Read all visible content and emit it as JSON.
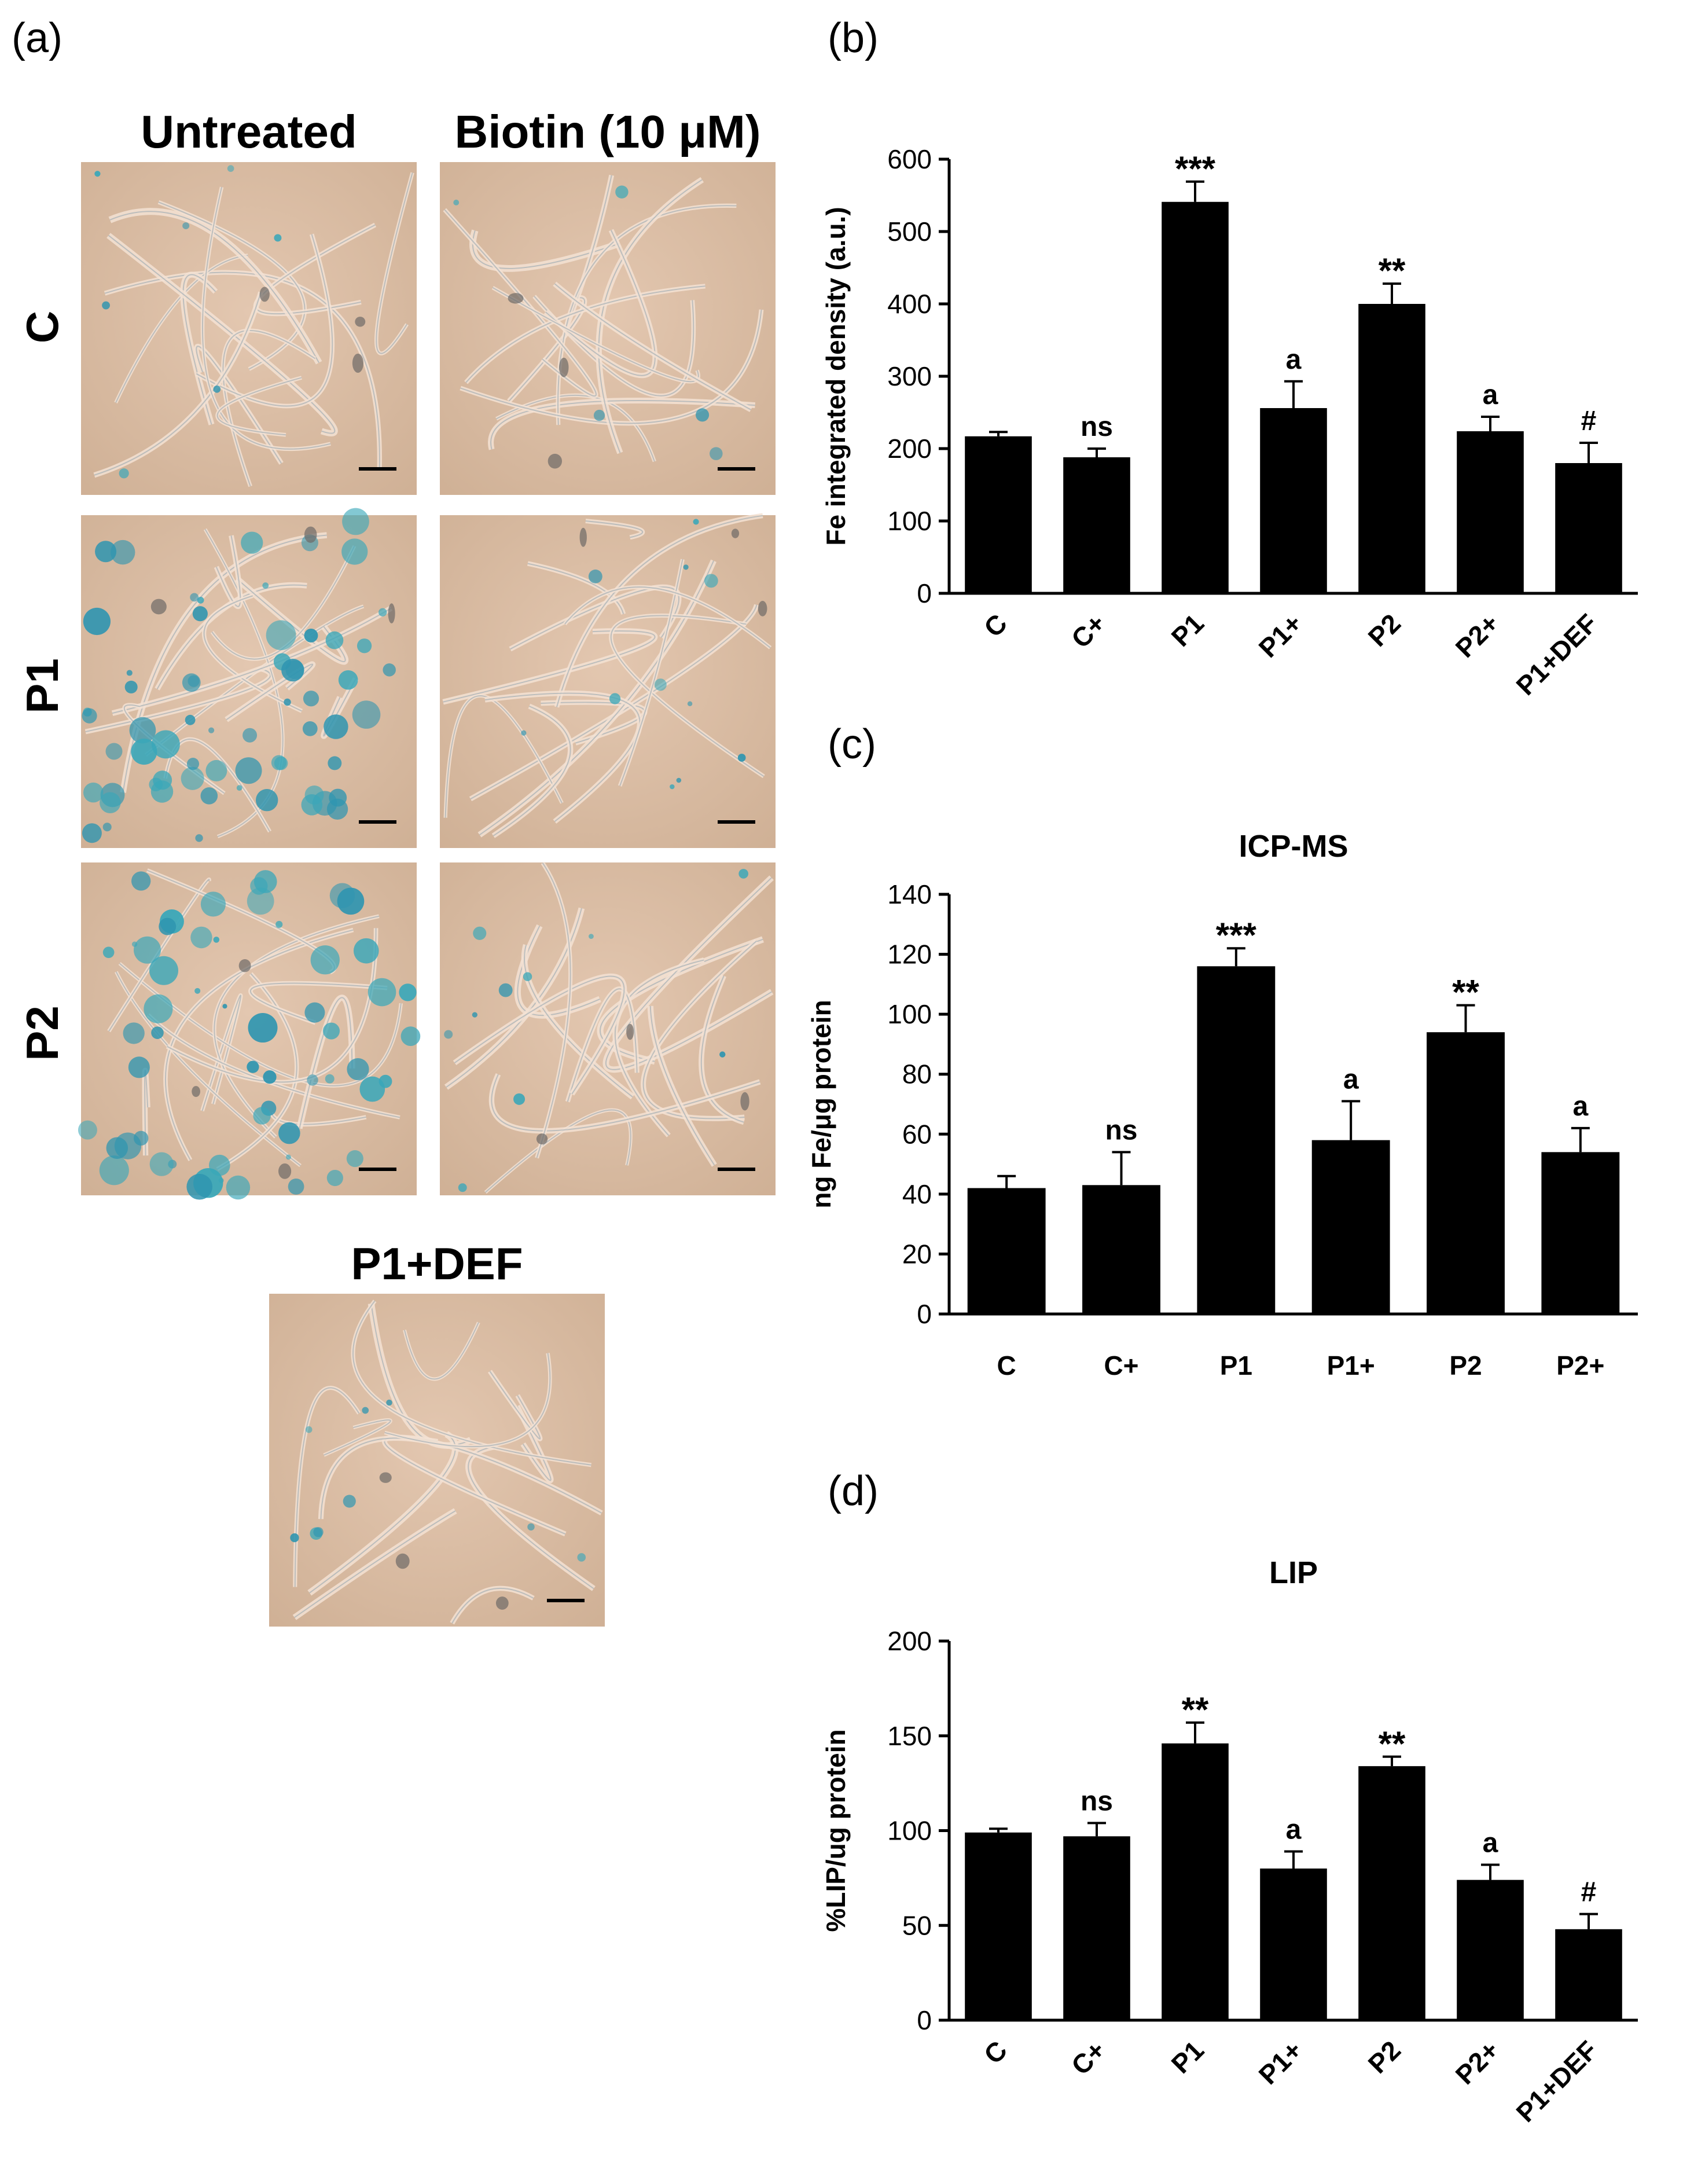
{
  "panel_a": {
    "label": "(a)",
    "col_headers": [
      "Untreated",
      "Biotin (10 μM)"
    ],
    "row_labels": [
      "C",
      "P1",
      "P2"
    ],
    "extra_label": "P1+DEF",
    "stain_levels": [
      [
        0.05,
        0.03
      ],
      [
        0.85,
        0.12
      ],
      [
        0.75,
        0.1
      ]
    ],
    "extra_stain_level": 0.08
  },
  "chart_data": [
    {
      "panel": "(b)",
      "type": "bar",
      "title": "",
      "xlabel": "",
      "ylabel": "Fe integrated density (a.u.)",
      "categories": [
        "C",
        "C+",
        "P1",
        "P1+",
        "P2",
        "P2+",
        "P1+DEF"
      ],
      "values": [
        217,
        188,
        541,
        256,
        400,
        224,
        180
      ],
      "errors": [
        6,
        12,
        28,
        37,
        28,
        20,
        28
      ],
      "annotations": [
        "",
        "ns",
        "***",
        "a",
        "**",
        "a",
        "#"
      ],
      "ylim": [
        0,
        600
      ],
      "yticks": [
        0,
        100,
        200,
        300,
        400,
        500,
        600
      ],
      "rotate_labels": true
    },
    {
      "panel": "(c)",
      "type": "bar",
      "title": "ICP-MS",
      "xlabel": "",
      "ylabel": "ng Fe/μg protein",
      "categories": [
        "C",
        "C+",
        "P1",
        "P1+",
        "P2",
        "P2+"
      ],
      "values": [
        42,
        43,
        116,
        58,
        94,
        54
      ],
      "errors": [
        4,
        11,
        6,
        13,
        9,
        8
      ],
      "annotations": [
        "",
        "ns",
        "***",
        "a",
        "**",
        "a"
      ],
      "ylim": [
        0,
        140
      ],
      "yticks": [
        0,
        20,
        40,
        60,
        80,
        100,
        120,
        140
      ],
      "rotate_labels": false
    },
    {
      "panel": "(d)",
      "type": "bar",
      "title": "LIP",
      "xlabel": "",
      "ylabel": "%LIP/ug protein",
      "categories": [
        "C",
        "C+",
        "P1",
        "P1+",
        "P2",
        "P2+",
        "P1+DEF"
      ],
      "values": [
        99,
        97,
        146,
        80,
        134,
        74,
        48
      ],
      "errors": [
        2,
        7,
        11,
        9,
        5,
        8,
        8
      ],
      "annotations": [
        "",
        "ns",
        "**",
        "a",
        "**",
        "a",
        "#"
      ],
      "ylim": [
        0,
        200
      ],
      "yticks": [
        0,
        50,
        100,
        150,
        200
      ],
      "rotate_labels": true
    }
  ]
}
